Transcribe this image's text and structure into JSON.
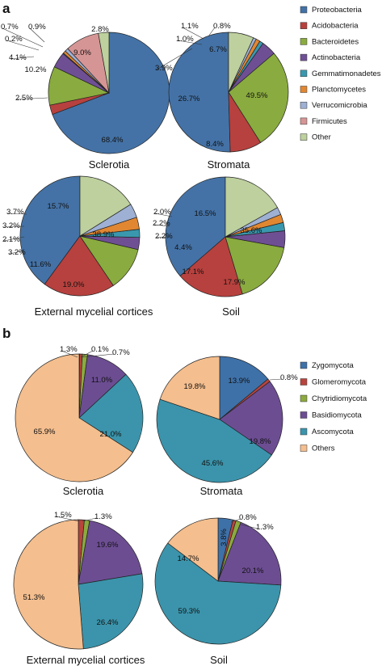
{
  "panels": [
    {
      "letter": "a",
      "legend": [
        {
          "name": "Proteobacteria",
          "color": "#4472A6"
        },
        {
          "name": "Acidobacteria",
          "color": "#B7413E"
        },
        {
          "name": "Bacteroidetes",
          "color": "#8AAB3F"
        },
        {
          "name": "Actinobacteria",
          "color": "#6F4F94"
        },
        {
          "name": "Gemmatimonadetes",
          "color": "#3A98AE"
        },
        {
          "name": "Planctomycetes",
          "color": "#E18732"
        },
        {
          "name": "Verrucomicrobia",
          "color": "#9EB0D3"
        },
        {
          "name": "Firmicutes",
          "color": "#D69595"
        },
        {
          "name": "Other",
          "color": "#BDD09E"
        }
      ]
    },
    {
      "letter": "b",
      "legend": [
        {
          "name": "Zygomycota",
          "color": "#3E71A8"
        },
        {
          "name": "Glomeromycota",
          "color": "#B8443E"
        },
        {
          "name": "Chytridiomycota",
          "color": "#8CAA3E"
        },
        {
          "name": "Basidiomycota",
          "color": "#6C4D92"
        },
        {
          "name": "Ascomycota",
          "color": "#3B94AB"
        },
        {
          "name": "Others",
          "color": "#F4BE8E"
        }
      ]
    }
  ],
  "chart_data": [
    {
      "type": "pie",
      "panel": "a",
      "title": "Sclerotia",
      "labels": [
        "Proteobacteria",
        "Acidobacteria",
        "Bacteroidetes",
        "Actinobacteria",
        "Gemmatimonadetes",
        "Planctomycetes",
        "Verrucomicrobia",
        "Firmicutes",
        "Other"
      ],
      "values": [
        68.4,
        2.5,
        10.2,
        4.1,
        0.2,
        0.7,
        0.9,
        9.0,
        2.8
      ],
      "value_labels": [
        "68.4%",
        "2.5%",
        "10.2%",
        "4.1%",
        "0.2%",
        "0.7%",
        "0.9%",
        "9.0%",
        "2.8%"
      ]
    },
    {
      "type": "pie",
      "panel": "a",
      "title": "Stromata",
      "labels": [
        "Proteobacteria",
        "Acidobacteria",
        "Bacteroidetes",
        "Actinobacteria",
        "Gemmatimonadetes",
        "Planctomycetes",
        "Verrucomicrobia",
        "Other"
      ],
      "values": [
        49.5,
        8.4,
        26.7,
        3.9,
        1.0,
        1.1,
        0.8,
        6.7
      ],
      "value_labels": [
        "49.5%",
        "8.4%",
        "26.7%",
        "3.9%",
        "1.0%",
        "1.1%",
        "0.8%",
        "6.7%"
      ]
    },
    {
      "type": "pie",
      "panel": "a",
      "title": "External mycelial cortices",
      "labels": [
        "Proteobacteria",
        "Acidobacteria",
        "Bacteroidetes",
        "Actinobacteria",
        "Gemmatimonadetes",
        "Planctomycetes",
        "Verrucomicrobia",
        "Other"
      ],
      "values": [
        38.9,
        19.0,
        11.6,
        3.2,
        2.1,
        3.2,
        3.7,
        15.7
      ],
      "value_labels": [
        "38.9%",
        "19.0%",
        "11.6%",
        "3.2%",
        "2.1%",
        "3.2%",
        "3.7%",
        "15.7%"
      ]
    },
    {
      "type": "pie",
      "panel": "a",
      "title": "Soil",
      "labels": [
        "Proteobacteria",
        "Acidobacteria",
        "Bacteroidetes",
        "Actinobacteria",
        "Gemmatimonadetes",
        "Planctomycetes",
        "Verrucomicrobia",
        "Other"
      ],
      "values": [
        35.6,
        17.9,
        17.1,
        4.4,
        2.2,
        2.2,
        2.0,
        16.5
      ],
      "value_labels": [
        "35.6%",
        "17.9%",
        "17.1%",
        "4.4%",
        "2.2%",
        "2.2%",
        "2.0%",
        "16.5%"
      ]
    },
    {
      "type": "pie",
      "panel": "b",
      "title": "Sclerotia",
      "labels": [
        "Zygomycota",
        "Glomeromycota",
        "Chytridiomycota",
        "Basidiomycota",
        "Ascomycota",
        "Others"
      ],
      "values": [
        0.1,
        0.7,
        1.3,
        11.0,
        21.0,
        65.9
      ],
      "value_labels": [
        "0.1%",
        "0.7%",
        "1.3%",
        "11.0%",
        "21.0%",
        "65.9%"
      ]
    },
    {
      "type": "pie",
      "panel": "b",
      "title": "Stromata",
      "labels": [
        "Zygomycota",
        "Glomeromycota",
        "Basidiomycota",
        "Ascomycota",
        "Others"
      ],
      "values": [
        13.9,
        0.8,
        19.8,
        45.6,
        19.8
      ],
      "value_labels": [
        "13.9%",
        "0.8%",
        "19.8%",
        "45.6%",
        "19.8%"
      ]
    },
    {
      "type": "pie",
      "panel": "b",
      "title": "External mycelial cortices",
      "labels": [
        "Glomeromycota",
        "Chytridiomycota",
        "Basidiomycota",
        "Ascomycota",
        "Others"
      ],
      "values": [
        1.5,
        1.3,
        19.6,
        26.4,
        51.3
      ],
      "value_labels": [
        "1.5%",
        "1.3%",
        "19.6%",
        "26.4%",
        "51.3%"
      ]
    },
    {
      "type": "pie",
      "panel": "b",
      "title": "Soil",
      "labels": [
        "Zygomycota",
        "Glomeromycota",
        "Chytridiomycota",
        "Basidiomycota",
        "Ascomycota",
        "Others"
      ],
      "values": [
        3.8,
        0.8,
        1.3,
        20.1,
        59.3,
        14.7
      ],
      "value_labels": [
        "3.8%",
        "0.8%",
        "1.3%",
        "20.1%",
        "59.3%",
        "14.7%"
      ]
    }
  ]
}
